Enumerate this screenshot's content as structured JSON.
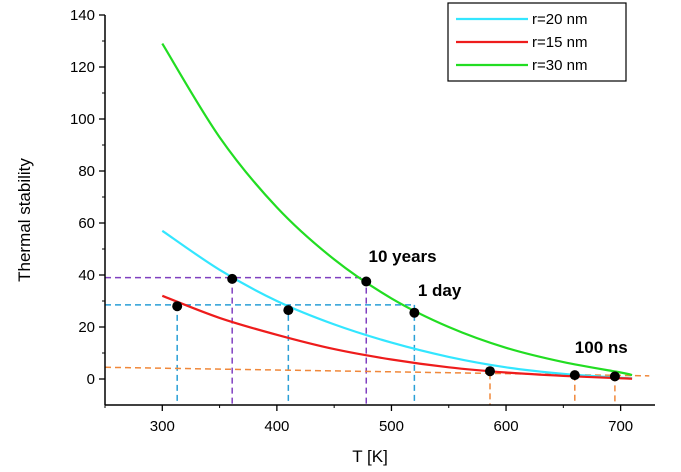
{
  "chart_data": {
    "type": "line",
    "xlabel": "T [K]",
    "ylabel": "Thermal stability",
    "xlim": [
      250,
      730
    ],
    "ylim": [
      -10,
      140
    ],
    "x_ticks": [
      300,
      400,
      500,
      600,
      700
    ],
    "y_ticks": [
      0,
      20,
      40,
      60,
      80,
      100,
      120,
      140
    ],
    "legend_position": "top-right",
    "grid": false,
    "series": [
      {
        "name": "r=20 nm",
        "color": "#33E6FF",
        "x": [
          300,
          350,
          400,
          450,
          500,
          550,
          600,
          650,
          700,
          710
        ],
        "y": [
          57,
          42,
          30,
          21,
          14,
          8.5,
          4.5,
          2,
          0.5,
          0.3
        ]
      },
      {
        "name": "r=15 nm",
        "color": "#EE1C1C",
        "x": [
          300,
          350,
          400,
          450,
          500,
          550,
          600,
          650,
          700,
          710
        ],
        "y": [
          32,
          23.5,
          17,
          11.5,
          7.5,
          4.5,
          2.5,
          1.2,
          0.3,
          0.1
        ]
      },
      {
        "name": "r=30 nm",
        "color": "#22DD22",
        "x": [
          300,
          350,
          400,
          450,
          500,
          550,
          600,
          650,
          700,
          710
        ],
        "y": [
          129,
          93,
          66,
          46,
          31,
          20,
          12,
          6.5,
          2.5,
          1.5
        ]
      }
    ],
    "points": [
      {
        "x": 313,
        "y": 28
      },
      {
        "x": 361,
        "y": 38.5
      },
      {
        "x": 410,
        "y": 26.5
      },
      {
        "x": 478,
        "y": 37.5
      },
      {
        "x": 520,
        "y": 25.5
      },
      {
        "x": 586,
        "y": 3
      },
      {
        "x": 660,
        "y": 1.5
      },
      {
        "x": 695,
        "y": 1
      }
    ],
    "guide_lines": [
      {
        "color": "#8040C0",
        "x_from": 250,
        "x_to": 478,
        "y_at": 39,
        "drop_x": [
          361,
          478
        ]
      },
      {
        "color": "#2A9FD6",
        "x_from": 250,
        "x_to": 520,
        "y_at": 28.5,
        "drop_x": [
          313,
          410,
          520
        ]
      },
      {
        "color": "#F0883A",
        "x_from": 250,
        "x_to": 725,
        "y_from": 4.5,
        "y_to": 1.2,
        "drop_x": [
          586,
          660,
          695
        ]
      }
    ],
    "annotations": [
      {
        "text": "10 years",
        "x": 480,
        "y": 45
      },
      {
        "text": "1 day",
        "x": 523,
        "y": 32
      },
      {
        "text": "100 ns",
        "x": 660,
        "y": 10
      }
    ]
  }
}
